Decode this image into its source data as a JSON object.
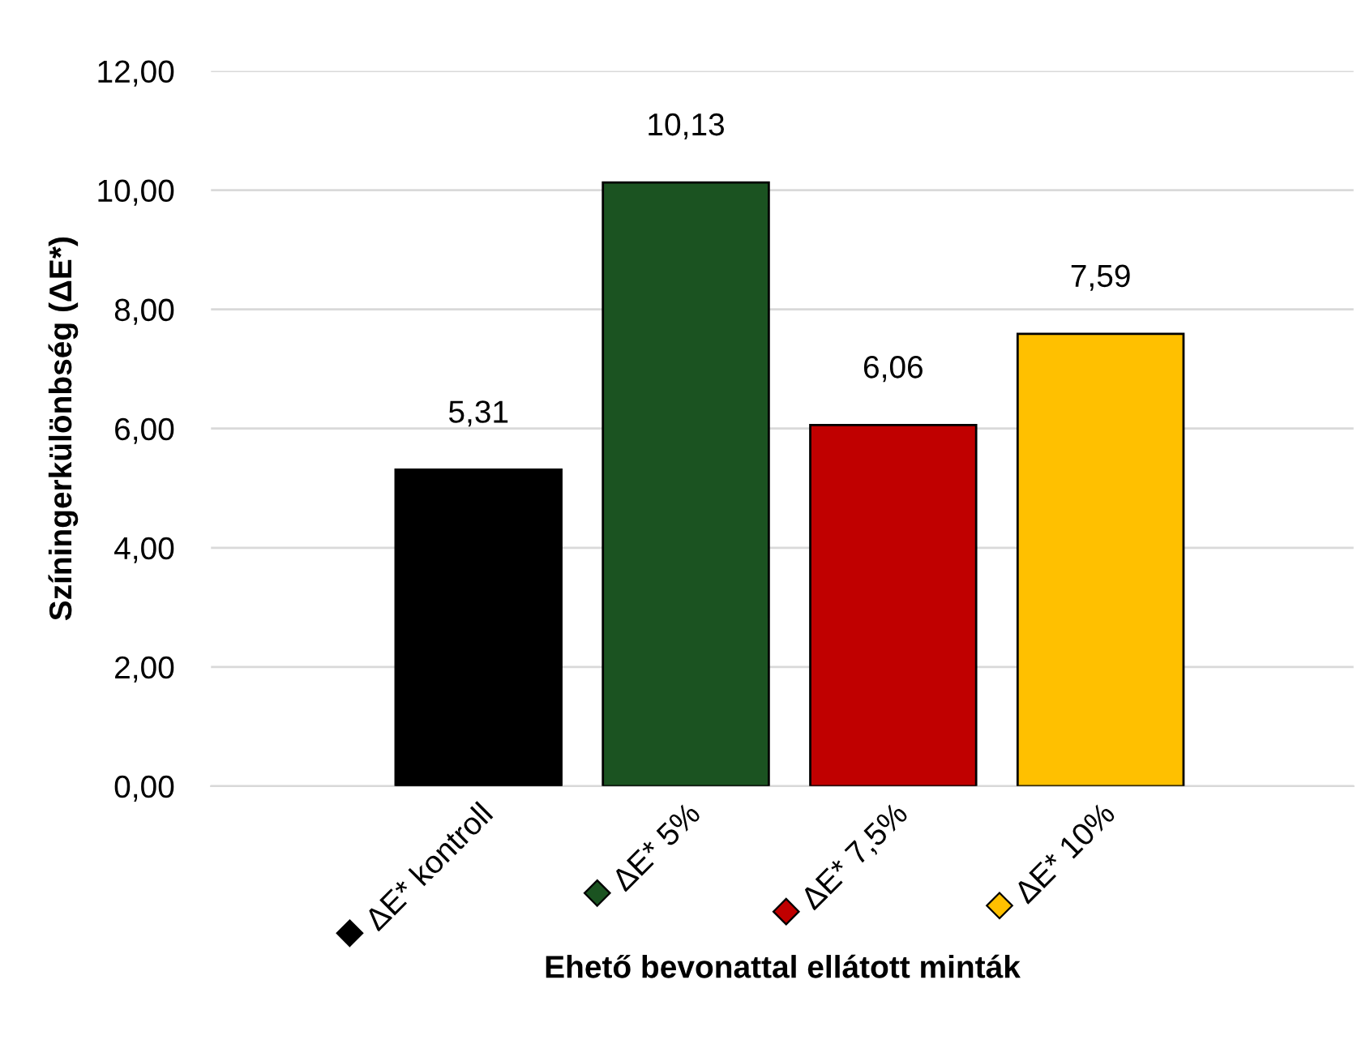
{
  "chart_data": {
    "type": "bar",
    "xlabel": "Ehető bevonattal ellátott minták",
    "ylabel": "Színingerkülönbség (ΔE*)",
    "categories": [
      "ΔE* kontroll",
      "ΔE* 5%",
      "ΔE* 7,5%",
      "ΔE* 10%"
    ],
    "values": [
      5.31,
      10.13,
      6.06,
      7.59
    ],
    "colors": [
      "#000000",
      "#1b5321",
      "#c00000",
      "#ffc000"
    ],
    "value_labels": [
      "5,31",
      "10,13",
      "6,06",
      "7,59"
    ],
    "ylim": [
      0,
      12
    ],
    "yticks": [
      {
        "value": 0,
        "label": "0,00"
      },
      {
        "value": 2,
        "label": "2,00"
      },
      {
        "value": 4,
        "label": "4,00"
      },
      {
        "value": 6,
        "label": "6,00"
      },
      {
        "value": 8,
        "label": "8,00"
      },
      {
        "value": 10,
        "label": "10,00"
      },
      {
        "value": 12,
        "label": "12,00"
      }
    ],
    "grid": "y"
  }
}
